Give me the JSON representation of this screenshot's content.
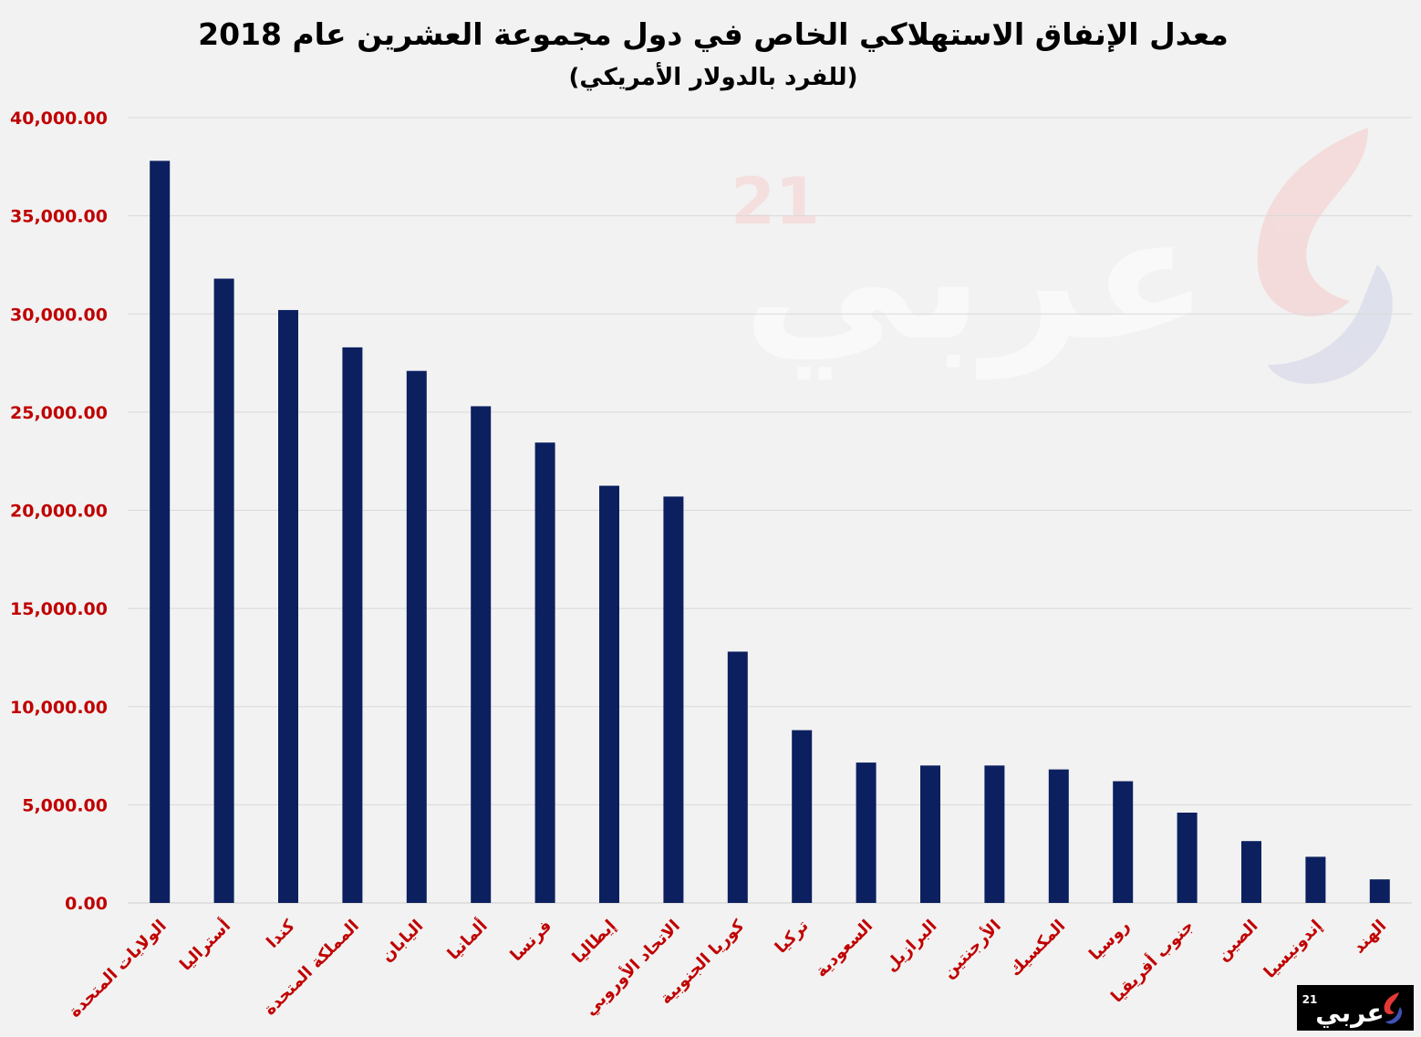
{
  "chart_data": {
    "type": "bar",
    "title": "معدل الإنفاق الاستهلاكي الخاص في دول مجموعة العشرين عام 2018",
    "subtitle": "(للفرد بالدولار الأمريكي)",
    "xlabel": "",
    "ylabel": "",
    "ylim": [
      0,
      40000
    ],
    "yticks": [
      "0.00",
      "5,000.00",
      "10,000.00",
      "15,000.00",
      "20,000.00",
      "25,000.00",
      "30,000.00",
      "35,000.00",
      "40,000.00"
    ],
    "grid": true,
    "legend": "none",
    "categories": [
      "الولايات المتحدة",
      "أستراليا",
      "كندا",
      "المملكة المتحدة",
      "اليابان",
      "ألمانيا",
      "فرنسا",
      "إيطاليا",
      "الاتحاد الأوروبي",
      "كوريا الجنوبية",
      "تركيا",
      "السعودية",
      "البرازيل",
      "الأرجنتين",
      "المكسيك",
      "روسيا",
      "جنوب أفريقيا",
      "الصين",
      "إندونيسيا",
      "الهند"
    ],
    "values": [
      37800,
      31800,
      30200,
      28300,
      27100,
      25300,
      23450,
      21250,
      20700,
      12800,
      8800,
      7150,
      7000,
      7000,
      6800,
      6200,
      4600,
      3150,
      2350,
      1200
    ]
  },
  "colors": {
    "bar": "#0c2060",
    "tick_label": "#c00000",
    "grid": "#d9d9d9",
    "background": "#f2f2f2"
  },
  "watermark": {
    "text": "عربي",
    "superscript": "21"
  },
  "logo": {
    "text": "عربي",
    "superscript": "21"
  }
}
